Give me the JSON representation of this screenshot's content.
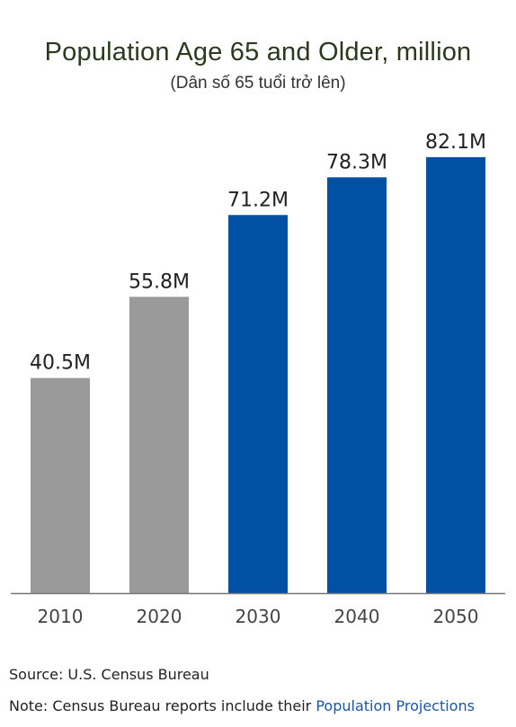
{
  "chart_data": {
    "type": "bar",
    "title": "Population Age 65 and Older, million",
    "subtitle": "(Dân số 65 tuổi trở lên)",
    "categories": [
      "2010",
      "2020",
      "2030",
      "2040",
      "2050"
    ],
    "values": [
      40.5,
      55.8,
      71.2,
      78.3,
      82.1
    ],
    "data_labels": [
      "40.5M",
      "55.8M",
      "71.2M",
      "78.3M",
      "82.1M"
    ],
    "bar_colors": [
      "#9a9a9a",
      "#9a9a9a",
      "#0050a3",
      "#0050a3",
      "#0050a3"
    ],
    "xlabel": "",
    "ylabel": "",
    "ylim": [
      0,
      88
    ],
    "grid": false,
    "legend": "none"
  },
  "footer": {
    "source": "Source: U.S. Census Bureau",
    "note_prefix": "Note: Census Bureau reports include their ",
    "note_link": "Population Projections"
  }
}
